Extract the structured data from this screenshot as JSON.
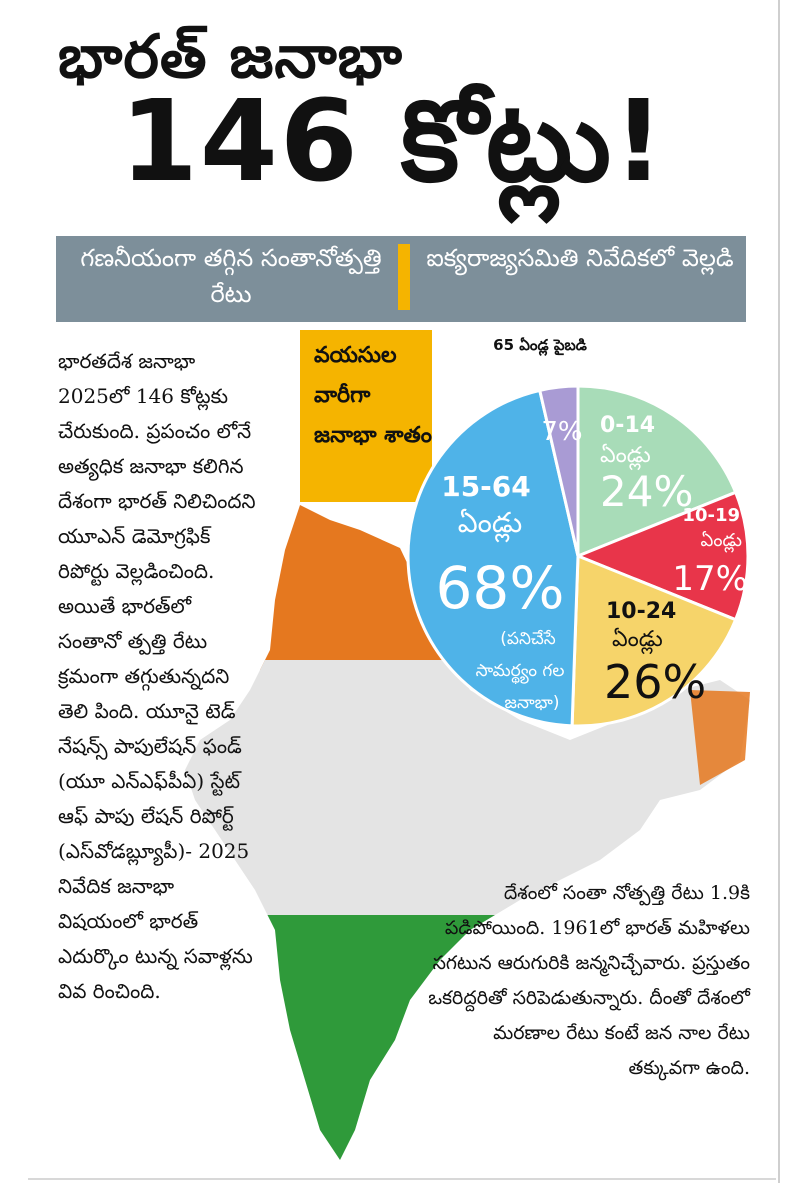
{
  "headline": {
    "line1": "భారత్ జనాభా",
    "line2": "146 కోట్లు!"
  },
  "band": {
    "left": "గణనీయంగా తగ్గిన సంతానోత్పత్తి రేటు",
    "right": "ఐక్యరాజ్యసమితి నివేదికలో వెల్లడి"
  },
  "left_column": "భారతదేశ జనాభా 2025లో 146 కోట్లకు చేరుకుంది. ప్రపంచం లోనే అత్యధిక జనాభా కలిగిన దేశంగా భారత్ నిలిచిందని యూఎన్ డెమోగ్రఫిక్ రిపోర్టు వెల్లడించింది. అయితే భారత్‌లో సంతానో త్పత్తి రేటు క్రమంగా తగ్గుతున్నదని తెలి పింది. యూనై టెడ్ నేషన్స్ పాపులేషన్ ఫండ్ (యూ ఎన్ఎఫ్‌పీఏ) స్టేట్ ఆఫ్ పాపు లేషన్ రిపోర్ట్ (ఎస్‌వోడబ్ల్యూపీ)- 2025 నివేదిక జనాభా విషయంలో భారత్ ఎదుర్కొం టున్న సవాళ్లను వివ రించింది.",
  "right_column": "దేశంలో సంతా నోత్పత్తి రేటు 1.9కి పడిపోయింది. 1961లో భారత్ మహిళలు సగటున ఆరుగురికి జన్మనిచ్చేవారు. ప్రస్తుతం ఒకరిద్దరితో సరిపెడుతున్నారు. దీంతో దేశంలో మరణాల రేటు కంటే జన నాల రేటు తక్కువగా ఉంది.",
  "age_box": {
    "text": "వయసుల వారీగా జనాభా శాతం"
  },
  "chart_data": {
    "type": "pie",
    "title": "వయసుల వారీగా జనాభా శాతం",
    "slices": [
      {
        "label": "0-14 ఏండ్లు",
        "value": 24,
        "value_label": "24%",
        "color": "#a8dcb8"
      },
      {
        "label": "10-19 ఏండ్లు",
        "value": 17,
        "value_label": "17%",
        "color": "#e8354a"
      },
      {
        "label": "10-24 ఏండ్లు",
        "value": 26,
        "value_label": "26%",
        "color": "#f6d46a"
      },
      {
        "label": "15-64 ఏండ్లు",
        "sublabel": "(పనిచేసే సామర్థ్యం గల జనాభా)",
        "value": 68,
        "value_label": "68%",
        "color": "#4fb3e8"
      },
      {
        "label": "65 ఏండ్ల పైబడి",
        "value": 7,
        "value_label": "7%",
        "color": "#a99bd4"
      }
    ]
  },
  "colors": {
    "band_bg": "#7d8f9a",
    "accent_yellow": "#f5b400",
    "map_saffron": "#e5781f",
    "map_white": "#e4e4e4",
    "map_green": "#2f9a3a"
  }
}
